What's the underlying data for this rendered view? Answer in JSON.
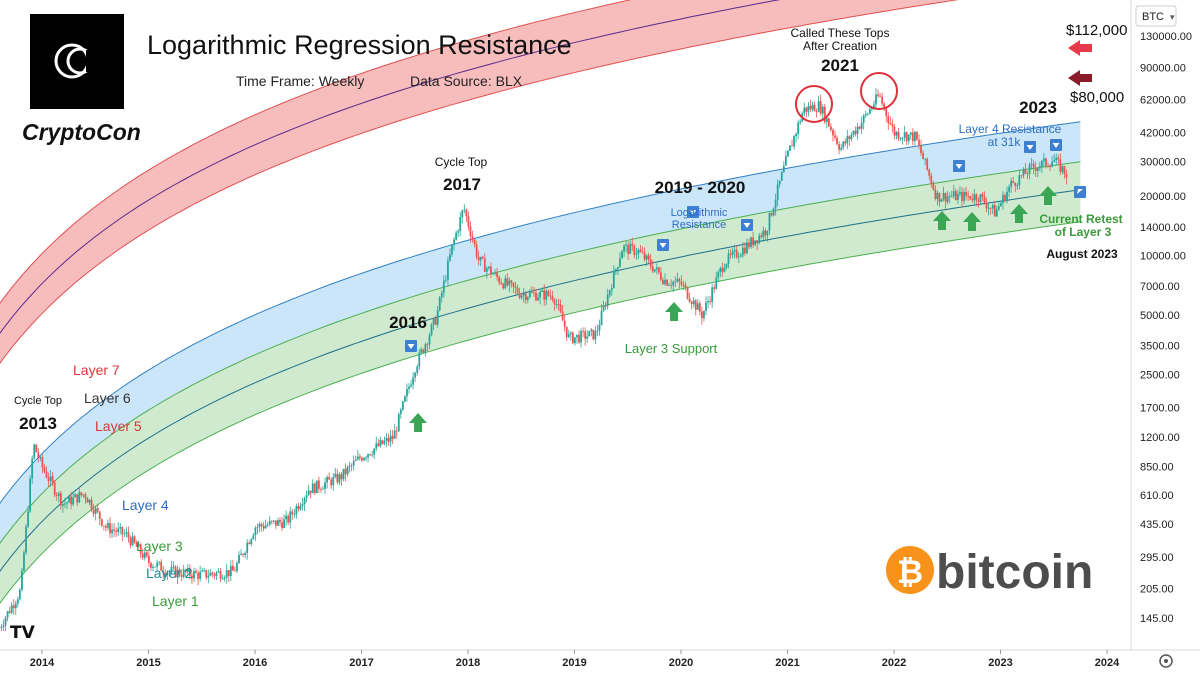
{
  "header": {
    "title": "Logarithmic Regression Resistance",
    "timeframe": "Time Frame: Weekly",
    "source": "Data Source: BLX",
    "brand": "CryptoCon"
  },
  "axis": {
    "currency": "BTC",
    "y_ticks": [
      "130000.00",
      "90000.00",
      "62000.00",
      "42000.00",
      "30000.00",
      "20000.00",
      "14000.00",
      "10000.00",
      "7000.00",
      "5000.00",
      "3500.00",
      "2500.00",
      "1700.00",
      "1200.00",
      "850.00",
      "610.00",
      "435.00",
      "295.00",
      "205.00",
      "145.00"
    ],
    "x_ticks": [
      "2014",
      "2015",
      "2016",
      "2017",
      "2018",
      "2019",
      "2020",
      "2021",
      "2022",
      "2023",
      "2024"
    ],
    "scale": "log"
  },
  "annotations": {
    "price_high": "$112,000",
    "price_low": "$80,000",
    "called_tops_1": "Called These Tops",
    "called_tops_2": "After Creation",
    "y2021": "2021",
    "y2023": "2023",
    "layer4_res_1": "Layer 4 Resistance",
    "layer4_res_2": "at 31k",
    "retest_1": "Current Retest",
    "retest_2": "of Layer 3",
    "aug": "August 2023",
    "cycle_top_2017": "Cycle Top",
    "y2017": "2017",
    "y2019_2020": "2019 - 2020",
    "log_res_1": "Logarithmic",
    "log_res_2": "Resistance",
    "y2016": "2016",
    "layer3_support": "Layer 3 Support",
    "layer7": "Layer 7",
    "layer6": "Layer 6",
    "layer5": "Layer 5",
    "cycle_top_2013": "Cycle Top",
    "y2013": "2013",
    "layer4": "Layer 4",
    "layer3": "Layer 3",
    "layer2": "Layer 2",
    "layer1": "Layer 1",
    "bitcoin": "bitcoin",
    "tv_logo": "TV"
  },
  "colors": {
    "red_band": "#f4a6a6",
    "blue_band": "#bfe0f7",
    "green_band": "#bfe3bf",
    "up": "#26a69a",
    "down": "#ef5350",
    "purple_line": "#5a2a8a",
    "arrow_red": "#e8394a",
    "arrow_dark": "#8b1a2a",
    "arrow_green": "#3aa655",
    "marker_blue": "#3d7fd0",
    "bitcoin_orange": "#f7931a"
  },
  "chart_data": {
    "type": "line",
    "title": "Logarithmic Regression Resistance",
    "y_scale": "log",
    "ylim": [
      120,
      150000
    ],
    "xlim": [
      2013.6,
      2024.4
    ],
    "x_ticks": [
      2014,
      2015,
      2016,
      2017,
      2018,
      2019,
      2020,
      2021,
      2022,
      2023,
      2024
    ],
    "series": [
      {
        "name": "BTC",
        "x": [
          2013.6,
          2013.8,
          2013.92,
          2014.0,
          2014.2,
          2014.4,
          2014.6,
          2014.8,
          2015.0,
          2015.2,
          2015.5,
          2015.8,
          2016.0,
          2016.3,
          2016.5,
          2016.8,
          2017.0,
          2017.3,
          2017.5,
          2017.7,
          2017.85,
          2017.96,
          2018.1,
          2018.3,
          2018.5,
          2018.8,
          2018.95,
          2019.2,
          2019.45,
          2019.6,
          2019.85,
          2020.0,
          2020.2,
          2020.4,
          2020.6,
          2020.8,
          2021.0,
          2021.15,
          2021.3,
          2021.5,
          2021.7,
          2021.86,
          2022.0,
          2022.2,
          2022.4,
          2022.6,
          2022.8,
          2022.95,
          2023.1,
          2023.3,
          2023.5,
          2023.62
        ],
        "values": [
          130,
          200,
          1100,
          850,
          550,
          620,
          420,
          380,
          280,
          250,
          240,
          250,
          420,
          450,
          650,
          750,
          960,
          1200,
          2700,
          4800,
          11000,
          17500,
          9500,
          7500,
          6400,
          6300,
          3800,
          4000,
          11000,
          10500,
          7500,
          7200,
          5000,
          9200,
          11000,
          13500,
          32000,
          55000,
          58000,
          35000,
          48000,
          65000,
          42000,
          40000,
          20000,
          20000,
          20000,
          16500,
          23000,
          28000,
          30500,
          26000
        ]
      }
    ],
    "bands": [
      "Layer 1",
      "Layer 2",
      "Layer 3",
      "Layer 4",
      "Layer 5",
      "Layer 6",
      "Layer 7"
    ]
  }
}
